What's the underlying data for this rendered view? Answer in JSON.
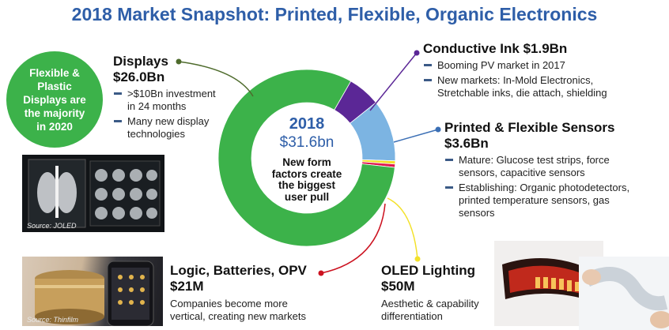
{
  "title": "2018 Market Snapshot: Printed, Flexible, Organic Electronics",
  "badge": {
    "lines": [
      "Flexible &",
      "Plastic",
      "Displays are",
      "the majority",
      "in 2020"
    ],
    "color": "#3cb24a"
  },
  "center": {
    "year": "2018",
    "total": "$31.6bn",
    "message_lines": [
      "New form",
      "factors create",
      "the biggest",
      "user pull"
    ]
  },
  "chart_data": {
    "type": "pie",
    "style": "donut",
    "unit": "$bn",
    "slices": [
      {
        "label": "Displays",
        "value": 26.0,
        "color": "#3cb24a"
      },
      {
        "label": "Conductive Ink",
        "value": 1.9,
        "color": "#5b2796"
      },
      {
        "label": "Printed & Flexible Sensors",
        "value": 3.6,
        "color": "#7cb4e2"
      },
      {
        "label": "OLED Lighting",
        "value": 0.05,
        "color": "#f3e12a"
      },
      {
        "label": "Logic, Batteries, OPV",
        "value": 0.021,
        "color": "#e0174f"
      }
    ]
  },
  "segments": {
    "displays": {
      "heading_lines": [
        "Displays",
        "$26.0Bn"
      ],
      "bullets": [
        {
          "lines": [
            ">$10Bn investment",
            "in 24 months"
          ]
        },
        {
          "lines": [
            "Many new display",
            "technologies"
          ]
        }
      ]
    },
    "conductive_ink": {
      "heading": "Conductive Ink $1.9Bn",
      "bullets": [
        {
          "lines": [
            "Booming PV market in 2017"
          ]
        },
        {
          "lines": [
            "New markets: In-Mold Electronics,",
            "Stretchable inks, die attach, shielding"
          ]
        }
      ]
    },
    "sensors": {
      "heading_lines": [
        "Printed & Flexible Sensors",
        "$3.6Bn"
      ],
      "bullets": [
        {
          "lines": [
            "Mature: Glucose test  strips, force",
            "sensors, capacitive sensors"
          ]
        },
        {
          "lines": [
            "Establishing: Organic photodetectors,",
            "printed temperature sensors, gas",
            "sensors"
          ]
        }
      ]
    },
    "logic": {
      "heading_lines": [
        "Logic, Batteries, OPV",
        "$21M"
      ],
      "desc_lines": [
        "Companies become more",
        "vertical, creating new markets"
      ]
    },
    "oled": {
      "heading_lines": [
        "OLED Lighting",
        "$50M"
      ],
      "desc_lines": [
        "Aesthetic & capability",
        "differentiation"
      ]
    }
  },
  "photos": {
    "xray_source": "Source: JOLED",
    "thinfilm_source": "Source: Thinfilm"
  },
  "callout_colors": {
    "displays": "#4e6b2c",
    "ink": "#5b2796",
    "sensors": "#3b6fb5",
    "oled": "#f3e12a",
    "logic": "#cc1220"
  }
}
